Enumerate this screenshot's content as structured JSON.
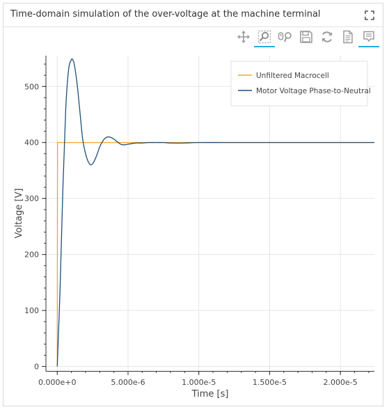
{
  "panel": {
    "title": "Time-domain simulation of the over-voltage at the machine terminal"
  },
  "toolbar": {
    "tools": [
      {
        "name": "pan-tool",
        "icon": "move-arrows-icon",
        "active": false
      },
      {
        "name": "box-zoom-tool",
        "icon": "magnifier-box-icon",
        "active": true
      },
      {
        "name": "wheel-zoom-tool",
        "icon": "wheel-zoom-icon",
        "active": false
      },
      {
        "name": "save-tool",
        "icon": "floppy-disk-icon",
        "active": false
      },
      {
        "name": "reset-tool",
        "icon": "refresh-icon",
        "active": false
      },
      {
        "name": "help-tool",
        "icon": "document-icon",
        "active": false
      },
      {
        "name": "hover-tool",
        "icon": "tooltip-icon",
        "active": true
      }
    ]
  },
  "chart_data": {
    "type": "line",
    "title": "",
    "xlabel": "Time [s]",
    "ylabel": "Voltage [V]",
    "xlim": [
      -8e-07,
      2.24e-05
    ],
    "ylim": [
      -8,
      555
    ],
    "x_ticks": [
      {
        "value": 0,
        "label": "0.000e+0"
      },
      {
        "value": 5e-06,
        "label": "5.000e-6"
      },
      {
        "value": 1e-05,
        "label": "1.000e-5"
      },
      {
        "value": 1.5e-05,
        "label": "1.500e-5"
      },
      {
        "value": 2e-05,
        "label": "2.000e-5"
      }
    ],
    "x_minor_step": 1e-06,
    "y_ticks": [
      {
        "value": 0,
        "label": "0"
      },
      {
        "value": 100,
        "label": "100"
      },
      {
        "value": 200,
        "label": "200"
      },
      {
        "value": 300,
        "label": "300"
      },
      {
        "value": 400,
        "label": "400"
      },
      {
        "value": 500,
        "label": "500"
      }
    ],
    "y_minor_step": 20,
    "grid": true,
    "legend_position": "top-right",
    "series": [
      {
        "name": "Unfiltered Macrocell",
        "color": "#f5a623",
        "x": [
          0,
          2e-08,
          2.24e-05
        ],
        "y": [
          0,
          400,
          400
        ]
      },
      {
        "name": "Motor Voltage Phase-to-Neutral",
        "color": "#1f4e79",
        "x": [
          0,
          2e-07,
          4e-07,
          6e-07,
          8e-07,
          1e-06,
          1.1e-06,
          1.2e-06,
          1.4e-06,
          1.6e-06,
          1.8e-06,
          2e-06,
          2.2e-06,
          2.4e-06,
          2.6e-06,
          2.8e-06,
          3e-06,
          3.2e-06,
          3.4e-06,
          3.6e-06,
          3.8e-06,
          4e-06,
          4.2e-06,
          4.4e-06,
          4.6e-06,
          4.8e-06,
          5e-06,
          5.3e-06,
          5.6e-06,
          6e-06,
          6.5e-06,
          7e-06,
          7.5e-06,
          8e-06,
          9e-06,
          1e-05,
          1.2e-05,
          1.5e-05,
          1.8e-05,
          2.24e-05
        ],
        "y": [
          0,
          140,
          320,
          460,
          530,
          548,
          547,
          540,
          505,
          455,
          405,
          380,
          365,
          360,
          366,
          378,
          392,
          402,
          408,
          410,
          409,
          406,
          402,
          398,
          396,
          396,
          397,
          398,
          399,
          399,
          400,
          400,
          400,
          399,
          399,
          400,
          400,
          400,
          400,
          400
        ]
      }
    ]
  }
}
